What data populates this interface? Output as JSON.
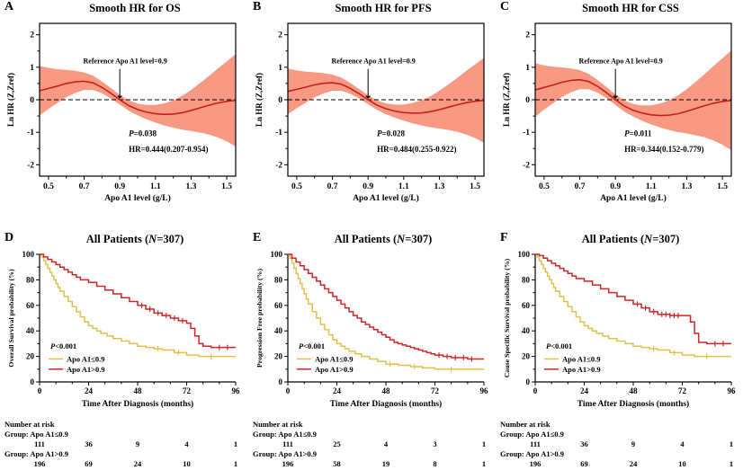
{
  "colors": {
    "band": "#F68E76",
    "curve": "#C42020",
    "axis": "#000000",
    "km_low": "#E3C04B",
    "km_high": "#CE2626"
  },
  "chart_data": [
    {
      "id": "A",
      "type": "line",
      "title": "Smooth HR for OS",
      "xlabel": "Apo A1 level (g/L)",
      "ylabel": "Ln HR (Z,Zref)",
      "xlim": [
        0.45,
        1.55
      ],
      "ylim": [
        -2.35,
        2.35
      ],
      "xticks": [
        0.5,
        0.7,
        0.9,
        1.1,
        1.3,
        1.5
      ],
      "xticks_minor": [
        0.6,
        0.8,
        1.0,
        1.2,
        1.4
      ],
      "yticks": [
        -2,
        -1,
        0,
        1,
        2
      ],
      "yticks_minor": [
        -1.5,
        -0.5,
        0.5,
        1.5
      ],
      "reference_label": "Reference Apo A1 level=0.9",
      "reference_x": 0.9,
      "p_prefix": "P",
      "p_value": "=0.038",
      "hr_text": "HR=0.444(0.207-0.954)",
      "y_scale": 1,
      "x": [
        0.45,
        0.5,
        0.55,
        0.6,
        0.65,
        0.7,
        0.75,
        0.8,
        0.85,
        0.9,
        0.95,
        1.0,
        1.05,
        1.1,
        1.15,
        1.2,
        1.25,
        1.3,
        1.35,
        1.4,
        1.45,
        1.5,
        1.55
      ],
      "y": [
        0.28,
        0.35,
        0.42,
        0.5,
        0.55,
        0.57,
        0.52,
        0.38,
        0.2,
        0,
        -0.18,
        -0.3,
        -0.38,
        -0.43,
        -0.45,
        -0.44,
        -0.4,
        -0.33,
        -0.25,
        -0.17,
        -0.1,
        -0.05,
        -0.02
      ],
      "upper": [
        1.04,
        0.98,
        0.94,
        0.92,
        0.89,
        0.84,
        0.74,
        0.56,
        0.36,
        0.15,
        -0.02,
        -0.12,
        -0.16,
        -0.16,
        -0.11,
        -0.02,
        0.12,
        0.3,
        0.51,
        0.73,
        0.96,
        1.18,
        1.4
      ],
      "lower": [
        -0.48,
        -0.28,
        -0.1,
        0.08,
        0.21,
        0.3,
        0.3,
        0.2,
        0.04,
        -0.15,
        -0.34,
        -0.48,
        -0.6,
        -0.7,
        -0.79,
        -0.86,
        -0.92,
        -0.96,
        -1.01,
        -1.07,
        -1.16,
        -1.28,
        -1.44
      ]
    },
    {
      "id": "B",
      "type": "line",
      "title": "Smooth HR for PFS",
      "same_curve_as": "A",
      "y_scale": 0.92,
      "p_prefix": "P",
      "p_value": "=0.028",
      "hr_text": "HR=0.484(0.255-0.922)"
    },
    {
      "id": "C",
      "type": "line",
      "title": "Smooth HR for CSS",
      "same_curve_as": "A",
      "y_scale": 1.08,
      "p_prefix": "P",
      "p_value": "=0.011",
      "hr_text": "HR=0.344(0.152-0.779)"
    },
    {
      "id": "D",
      "type": "km_step",
      "title": "All Patients (N=307)",
      "ylabel": "Overall Survival probability (%)",
      "xlabel": "Time After Diagnosis (months)",
      "xticks": [
        0,
        24,
        48,
        72,
        96
      ],
      "yticks": [
        0,
        20,
        40,
        60,
        80,
        100
      ],
      "p_text": "P<0.001",
      "low": [
        [
          0,
          100
        ],
        [
          1,
          98
        ],
        [
          2,
          95
        ],
        [
          3,
          92
        ],
        [
          4,
          89
        ],
        [
          5,
          86
        ],
        [
          6,
          83
        ],
        [
          7,
          80
        ],
        [
          8,
          77
        ],
        [
          9,
          74
        ],
        [
          10,
          71
        ],
        [
          12,
          67
        ],
        [
          14,
          63
        ],
        [
          16,
          59
        ],
        [
          18,
          55
        ],
        [
          20,
          51
        ],
        [
          22,
          47
        ],
        [
          24,
          44
        ],
        [
          26,
          42
        ],
        [
          28,
          40
        ],
        [
          30,
          38
        ],
        [
          33,
          36
        ],
        [
          36,
          34
        ],
        [
          40,
          32
        ],
        [
          44,
          30
        ],
        [
          48,
          28
        ],
        [
          52,
          27
        ],
        [
          56,
          26
        ],
        [
          60,
          25
        ],
        [
          66,
          23
        ],
        [
          72,
          21
        ],
        [
          78,
          20
        ],
        [
          96,
          20
        ]
      ],
      "high": [
        [
          0,
          100
        ],
        [
          2,
          98
        ],
        [
          4,
          96
        ],
        [
          6,
          94
        ],
        [
          8,
          92
        ],
        [
          10,
          90
        ],
        [
          12,
          88
        ],
        [
          14,
          86
        ],
        [
          16,
          84
        ],
        [
          18,
          82
        ],
        [
          20,
          80
        ],
        [
          24,
          78
        ],
        [
          28,
          75
        ],
        [
          32,
          72
        ],
        [
          36,
          69
        ],
        [
          40,
          66
        ],
        [
          44,
          63
        ],
        [
          48,
          60
        ],
        [
          52,
          57
        ],
        [
          56,
          54
        ],
        [
          60,
          52
        ],
        [
          64,
          50
        ],
        [
          68,
          48
        ],
        [
          72,
          46
        ],
        [
          74,
          42
        ],
        [
          76,
          36
        ],
        [
          78,
          30
        ],
        [
          80,
          28
        ],
        [
          84,
          27
        ],
        [
          96,
          27
        ]
      ],
      "low_censor": [
        58,
        68,
        84
      ],
      "high_censor": [
        50,
        54,
        58,
        62,
        66,
        70,
        88,
        92
      ],
      "risk_low": [
        111,
        36,
        9,
        4,
        1
      ],
      "risk_high": [
        196,
        69,
        24,
        10,
        1
      ]
    },
    {
      "id": "E",
      "type": "km_step",
      "title": "All Patients (N=307)",
      "ylabel": "Progression Free probability (%)",
      "xlabel": "Time After Diagnosis (months)",
      "xticks": [
        0,
        24,
        48,
        72,
        96
      ],
      "yticks": [
        0,
        20,
        40,
        60,
        80,
        100
      ],
      "p_text": "P<0.001",
      "low": [
        [
          0,
          100
        ],
        [
          1,
          97
        ],
        [
          2,
          93
        ],
        [
          3,
          89
        ],
        [
          4,
          85
        ],
        [
          5,
          81
        ],
        [
          6,
          77
        ],
        [
          7,
          73
        ],
        [
          8,
          69
        ],
        [
          9,
          65
        ],
        [
          10,
          61
        ],
        [
          12,
          55
        ],
        [
          14,
          50
        ],
        [
          16,
          45
        ],
        [
          18,
          41
        ],
        [
          20,
          37
        ],
        [
          22,
          33
        ],
        [
          24,
          30
        ],
        [
          26,
          28
        ],
        [
          28,
          26
        ],
        [
          30,
          24
        ],
        [
          33,
          22
        ],
        [
          36,
          20
        ],
        [
          40,
          18
        ],
        [
          44,
          16
        ],
        [
          48,
          14
        ],
        [
          54,
          13
        ],
        [
          60,
          12
        ],
        [
          66,
          11
        ],
        [
          72,
          10
        ],
        [
          96,
          10
        ]
      ],
      "high": [
        [
          0,
          100
        ],
        [
          2,
          97
        ],
        [
          4,
          94
        ],
        [
          6,
          91
        ],
        [
          8,
          88
        ],
        [
          10,
          85
        ],
        [
          12,
          82
        ],
        [
          14,
          79
        ],
        [
          16,
          76
        ],
        [
          18,
          73
        ],
        [
          20,
          70
        ],
        [
          22,
          67
        ],
        [
          24,
          64
        ],
        [
          26,
          61
        ],
        [
          28,
          58
        ],
        [
          30,
          55
        ],
        [
          32,
          52
        ],
        [
          34,
          50
        ],
        [
          36,
          47
        ],
        [
          38,
          45
        ],
        [
          40,
          43
        ],
        [
          42,
          41
        ],
        [
          44,
          39
        ],
        [
          46,
          37
        ],
        [
          48,
          35
        ],
        [
          50,
          33
        ],
        [
          52,
          31
        ],
        [
          54,
          30
        ],
        [
          56,
          29
        ],
        [
          58,
          28
        ],
        [
          60,
          27
        ],
        [
          62,
          26
        ],
        [
          64,
          25
        ],
        [
          66,
          24
        ],
        [
          68,
          23
        ],
        [
          70,
          22
        ],
        [
          72,
          21
        ],
        [
          76,
          20
        ],
        [
          80,
          19
        ],
        [
          88,
          18
        ],
        [
          96,
          18
        ]
      ],
      "low_censor": [
        50,
        62,
        80
      ],
      "high_censor": [
        74,
        78,
        82,
        86,
        90
      ],
      "risk_low": [
        111,
        25,
        4,
        3,
        1
      ],
      "risk_high": [
        196,
        58,
        19,
        8,
        1
      ]
    },
    {
      "id": "F",
      "type": "km_step",
      "title": "All Patients (N=307)",
      "ylabel": "Cause Specific Survival probability (%)",
      "xlabel": "Time After Diagnosis (months)",
      "xticks": [
        0,
        24,
        48,
        72,
        96
      ],
      "yticks": [
        0,
        20,
        40,
        60,
        80,
        100
      ],
      "p_text": "P<0.001",
      "low": [
        [
          0,
          100
        ],
        [
          1,
          98
        ],
        [
          2,
          95
        ],
        [
          3,
          92
        ],
        [
          4,
          89
        ],
        [
          5,
          86
        ],
        [
          6,
          83
        ],
        [
          7,
          80
        ],
        [
          8,
          77
        ],
        [
          9,
          74
        ],
        [
          10,
          71
        ],
        [
          12,
          67
        ],
        [
          14,
          63
        ],
        [
          16,
          59
        ],
        [
          18,
          55
        ],
        [
          20,
          51
        ],
        [
          22,
          47
        ],
        [
          24,
          44
        ],
        [
          26,
          42
        ],
        [
          28,
          40
        ],
        [
          30,
          38
        ],
        [
          33,
          36
        ],
        [
          36,
          34
        ],
        [
          40,
          32
        ],
        [
          44,
          30
        ],
        [
          48,
          28
        ],
        [
          52,
          27
        ],
        [
          56,
          26
        ],
        [
          60,
          25
        ],
        [
          66,
          23
        ],
        [
          72,
          21
        ],
        [
          78,
          20
        ],
        [
          96,
          20
        ]
      ],
      "high": [
        [
          0,
          100
        ],
        [
          2,
          99
        ],
        [
          4,
          97
        ],
        [
          6,
          95
        ],
        [
          8,
          93
        ],
        [
          10,
          91
        ],
        [
          12,
          89
        ],
        [
          14,
          87
        ],
        [
          16,
          85
        ],
        [
          18,
          83
        ],
        [
          20,
          81
        ],
        [
          24,
          79
        ],
        [
          28,
          76
        ],
        [
          32,
          73
        ],
        [
          36,
          70
        ],
        [
          40,
          67
        ],
        [
          44,
          64
        ],
        [
          48,
          61
        ],
        [
          52,
          58
        ],
        [
          56,
          55
        ],
        [
          60,
          53
        ],
        [
          66,
          52
        ],
        [
          72,
          52
        ],
        [
          76,
          47
        ],
        [
          78,
          38
        ],
        [
          80,
          31
        ],
        [
          84,
          30
        ],
        [
          96,
          30
        ]
      ],
      "low_censor": [
        58,
        68,
        84
      ],
      "high_censor": [
        50,
        54,
        58,
        62,
        64,
        66,
        68,
        70,
        88,
        92
      ],
      "risk_low": [
        111,
        36,
        9,
        4,
        1
      ],
      "risk_high": [
        196,
        69,
        24,
        10,
        1
      ]
    }
  ],
  "km": {
    "xlabel": "Time After Diagnosis (months)",
    "title": {
      "pre": "All Patients (",
      "n": "N",
      "post": "=307)"
    },
    "legend": {
      "p_prefix": "P",
      "p_value": "<0.001",
      "low_label": "Apo A1≤0.9",
      "high_label": "Apo A1>0.9"
    },
    "risk_header": "Number at risk",
    "group_low_label": "Group: Apo A1≤0.9",
    "group_high_label": "Group: Apo A1>0.9"
  }
}
